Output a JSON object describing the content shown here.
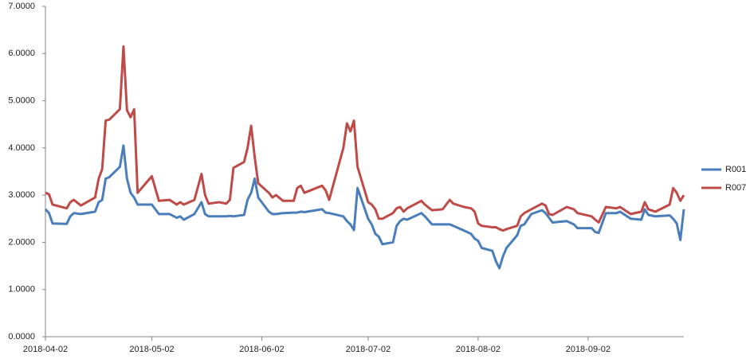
{
  "chart_data": {
    "type": "line",
    "x": [
      "2018-04-02",
      "2018-04-03",
      "2018-04-04",
      "2018-04-08",
      "2018-04-09",
      "2018-04-10",
      "2018-04-12",
      "2018-04-16",
      "2018-04-17",
      "2018-04-18",
      "2018-04-19",
      "2018-04-20",
      "2018-04-23",
      "2018-04-24",
      "2018-04-25",
      "2018-04-26",
      "2018-04-27",
      "2018-04-28",
      "2018-05-02",
      "2018-05-04",
      "2018-05-07",
      "2018-05-09",
      "2018-05-10",
      "2018-05-11",
      "2018-05-14",
      "2018-05-16",
      "2018-05-17",
      "2018-05-18",
      "2018-05-21",
      "2018-05-23",
      "2018-05-24",
      "2018-05-25",
      "2018-05-28",
      "2018-05-29",
      "2018-05-30",
      "2018-05-31",
      "2018-06-01",
      "2018-06-04",
      "2018-06-05",
      "2018-06-06",
      "2018-06-08",
      "2018-06-11",
      "2018-06-12",
      "2018-06-13",
      "2018-06-14",
      "2018-06-19",
      "2018-06-20",
      "2018-06-21",
      "2018-06-25",
      "2018-06-26",
      "2018-06-27",
      "2018-06-28",
      "2018-06-29",
      "2018-07-02",
      "2018-07-03",
      "2018-07-04",
      "2018-07-05",
      "2018-07-06",
      "2018-07-09",
      "2018-07-10",
      "2018-07-11",
      "2018-07-12",
      "2018-07-13",
      "2018-07-17",
      "2018-07-18",
      "2018-07-20",
      "2018-07-23",
      "2018-07-25",
      "2018-07-26",
      "2018-07-29",
      "2018-07-31",
      "2018-08-01",
      "2018-08-02",
      "2018-08-03",
      "2018-08-06",
      "2018-08-07",
      "2018-08-08",
      "2018-08-09",
      "2018-08-10",
      "2018-08-13",
      "2018-08-14",
      "2018-08-15",
      "2018-08-17",
      "2018-08-20",
      "2018-08-21",
      "2018-08-22",
      "2018-08-23",
      "2018-08-27",
      "2018-08-29",
      "2018-08-30",
      "2018-09-03",
      "2018-09-04",
      "2018-09-05",
      "2018-09-07",
      "2018-09-10",
      "2018-09-11",
      "2018-09-14",
      "2018-09-17",
      "2018-09-18",
      "2018-09-19",
      "2018-09-21",
      "2018-09-25",
      "2018-09-26",
      "2018-09-27",
      "2018-09-28",
      "2018-09-29"
    ],
    "series": [
      {
        "name": "R001",
        "color": "#4a7ebb",
        "values": [
          2.7,
          2.62,
          2.4,
          2.39,
          2.55,
          2.62,
          2.6,
          2.65,
          2.85,
          2.9,
          3.35,
          3.38,
          3.6,
          4.05,
          3.35,
          3.05,
          2.95,
          2.8,
          2.8,
          2.6,
          2.6,
          2.52,
          2.55,
          2.48,
          2.6,
          2.85,
          2.6,
          2.55,
          2.55,
          2.55,
          2.56,
          2.55,
          2.58,
          2.9,
          3.05,
          3.35,
          2.95,
          2.65,
          2.6,
          2.6,
          2.62,
          2.63,
          2.63,
          2.65,
          2.64,
          2.7,
          2.63,
          2.62,
          2.55,
          2.45,
          2.38,
          2.26,
          3.15,
          2.5,
          2.38,
          2.18,
          2.12,
          1.96,
          2.0,
          2.35,
          2.45,
          2.5,
          2.48,
          2.62,
          2.55,
          2.38,
          2.38,
          2.38,
          2.35,
          2.25,
          2.18,
          2.08,
          2.03,
          1.88,
          1.82,
          1.6,
          1.45,
          1.7,
          1.88,
          2.15,
          2.35,
          2.38,
          2.6,
          2.68,
          2.62,
          2.52,
          2.42,
          2.45,
          2.38,
          2.3,
          2.3,
          2.22,
          2.2,
          2.62,
          2.62,
          2.65,
          2.5,
          2.48,
          2.7,
          2.58,
          2.55,
          2.57,
          2.5,
          2.4,
          2.05,
          2.7
        ]
      },
      {
        "name": "R007",
        "color": "#be4b48",
        "values": [
          3.05,
          3.02,
          2.8,
          2.72,
          2.85,
          2.9,
          2.78,
          2.95,
          3.35,
          3.55,
          4.58,
          4.6,
          4.82,
          6.15,
          4.8,
          4.65,
          4.82,
          3.05,
          3.4,
          2.88,
          2.9,
          2.8,
          2.85,
          2.8,
          2.9,
          3.45,
          3.0,
          2.82,
          2.85,
          2.82,
          2.9,
          3.58,
          3.7,
          4.0,
          4.47,
          3.8,
          3.25,
          3.05,
          2.95,
          3.0,
          2.88,
          2.88,
          3.15,
          3.2,
          3.05,
          3.2,
          3.1,
          2.9,
          4.0,
          4.52,
          4.35,
          4.58,
          3.6,
          2.85,
          2.8,
          2.7,
          2.5,
          2.5,
          2.62,
          2.72,
          2.75,
          2.65,
          2.72,
          2.88,
          2.8,
          2.68,
          2.7,
          2.9,
          2.82,
          2.75,
          2.72,
          2.65,
          2.4,
          2.35,
          2.32,
          2.32,
          2.28,
          2.25,
          2.28,
          2.35,
          2.55,
          2.62,
          2.7,
          2.82,
          2.78,
          2.6,
          2.58,
          2.75,
          2.7,
          2.62,
          2.55,
          2.48,
          2.42,
          2.75,
          2.72,
          2.75,
          2.6,
          2.65,
          2.85,
          2.7,
          2.65,
          2.8,
          3.15,
          3.05,
          2.88,
          3.0
        ]
      }
    ],
    "xlim": [
      "2018-04-02",
      "2018-09-29"
    ],
    "xticks": [
      "2018-04-02",
      "2018-05-02",
      "2018-06-02",
      "2018-07-02",
      "2018-08-02",
      "2018-09-02"
    ],
    "ylim": [
      0,
      7
    ],
    "yticks": [
      {
        "value": 0,
        "label": "0.0000"
      },
      {
        "value": 1,
        "label": "1.0000"
      },
      {
        "value": 2,
        "label": "2.0000"
      },
      {
        "value": 3,
        "label": "3.0000"
      },
      {
        "value": 4,
        "label": "4.0000"
      },
      {
        "value": 5,
        "label": "5.0000"
      },
      {
        "value": 6,
        "label": "6.0000"
      },
      {
        "value": 7,
        "label": "7.0000"
      }
    ],
    "legend": "right",
    "grid": false
  }
}
